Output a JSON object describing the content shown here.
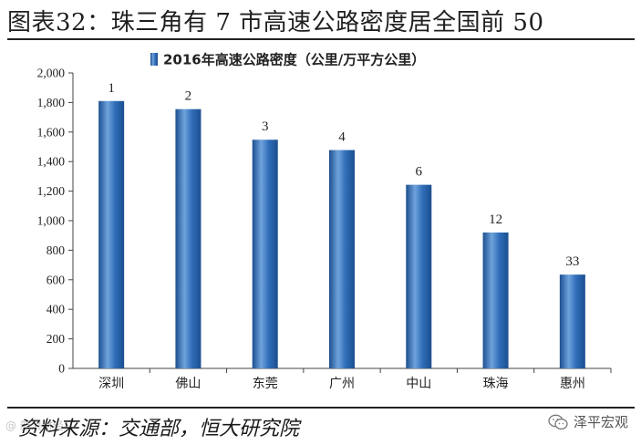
{
  "header": {
    "title": "图表32：珠三角有 7 市高速公路密度居全国前 50"
  },
  "footer": {
    "source": "资料来源：交通部，恒大研究院",
    "brand": "泽平宏观",
    "watermark": "@ 新浪财经"
  },
  "colors": {
    "bar_top": "#6fa3dc",
    "bar_mid": "#2f6db8",
    "bar_dark": "#1c4f8f"
  },
  "chart_data": {
    "type": "bar",
    "title": "",
    "legend": {
      "label": "2016年高速公路密度（公里/万平方公里）",
      "position": "top"
    },
    "categories": [
      "深圳",
      "佛山",
      "东莞",
      "广州",
      "中山",
      "珠海",
      "惠州"
    ],
    "series": [
      {
        "name": "2016年高速公路密度（公里/万平方公里）",
        "values": [
          1810,
          1755,
          1548,
          1478,
          1243,
          920,
          635
        ]
      }
    ],
    "data_labels": [
      "1",
      "2",
      "3",
      "4",
      "6",
      "12",
      "33"
    ],
    "ylim": [
      0,
      2000
    ],
    "yticks": [
      0,
      200,
      400,
      600,
      800,
      1000,
      1200,
      1400,
      1600,
      1800,
      2000
    ],
    "ytick_labels": [
      "0",
      "200",
      "400",
      "600",
      "800",
      "1,000",
      "1,200",
      "1,400",
      "1,600",
      "1,800",
      "2,000"
    ],
    "xlabel": "",
    "ylabel": "",
    "grid": false
  }
}
